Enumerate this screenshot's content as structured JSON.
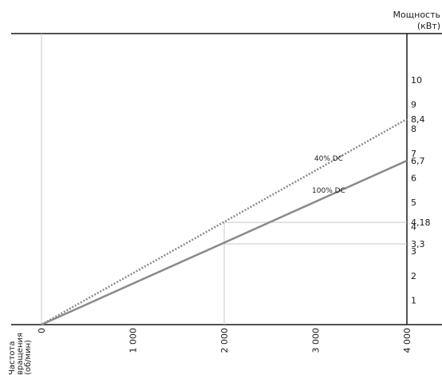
{
  "chart_data": {
    "type": "line",
    "xlabel": "Частота вращения (об/мин)",
    "xlabel_lines": [
      "Частота",
      "вращения",
      "(об/мин)"
    ],
    "ylabel": "Мощность (кВт)",
    "ylabel_lines": [
      "Мощность",
      "(кВт)"
    ],
    "xlim": [
      0,
      4000
    ],
    "ylim": [
      0,
      11
    ],
    "x_ticks": [
      0,
      1000,
      2000,
      3000,
      4000
    ],
    "x_tick_labels": [
      "0",
      "1 000",
      "2 000",
      "3 000",
      "4 000"
    ],
    "y_ticks": [
      1,
      2,
      3,
      4,
      5,
      6,
      7,
      8,
      9,
      10
    ],
    "y_tick_labels": [
      "1",
      "2",
      "3",
      "4",
      "5",
      "6",
      "7",
      "8",
      "9",
      "10"
    ],
    "y_extra_labels": [
      {
        "value": 8.4,
        "label": "8,4"
      },
      {
        "value": 6.7,
        "label": "6,7"
      },
      {
        "value": 4.18,
        "label": "4,18"
      },
      {
        "value": 3.3,
        "label": "3,3"
      }
    ],
    "series": [
      {
        "name": "40% DC",
        "style": "dotted",
        "color": "#8a8a8a",
        "x": [
          0,
          4000
        ],
        "y": [
          0,
          8.4
        ]
      },
      {
        "name": "100% DC",
        "style": "solid",
        "color": "#8a8a8a",
        "x": [
          0,
          4000
        ],
        "y": [
          0,
          6.7
        ]
      }
    ],
    "reference_lines": [
      {
        "x": 2000,
        "y": 4.18
      },
      {
        "x": 2000,
        "y": 3.3
      }
    ],
    "grid": false,
    "legend": "none"
  }
}
